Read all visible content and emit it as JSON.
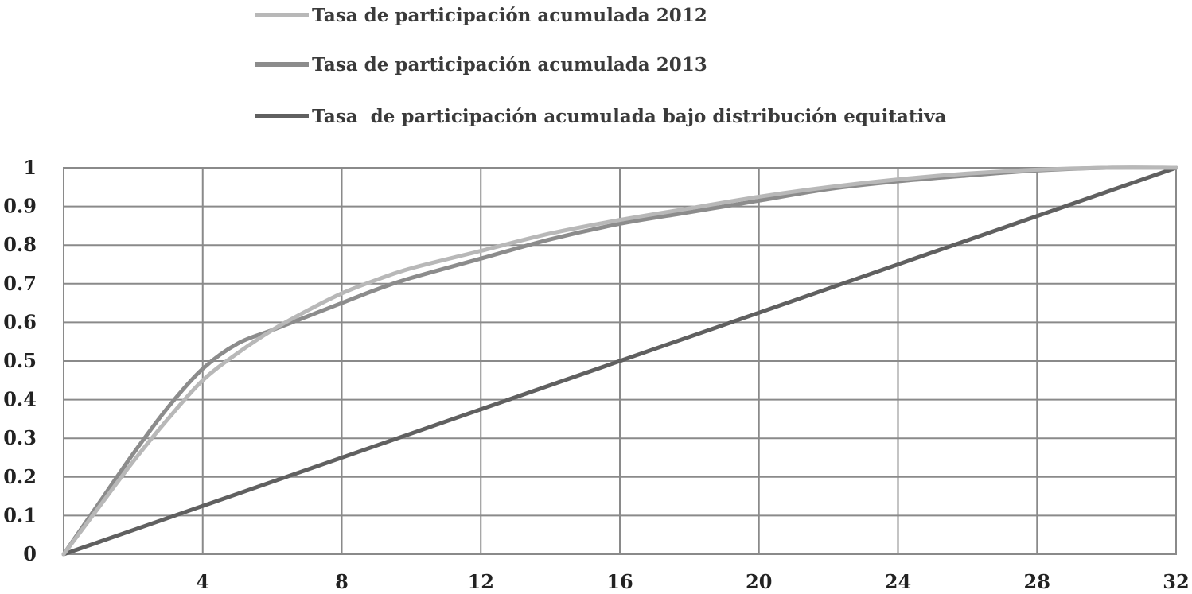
{
  "chart_data": {
    "type": "line",
    "title": "",
    "xlabel": "",
    "ylabel": "",
    "xlim": [
      0,
      32
    ],
    "ylim": [
      0,
      1
    ],
    "x_ticks": [
      4,
      8,
      12,
      16,
      20,
      24,
      28,
      32
    ],
    "y_ticks": [
      0,
      0.1,
      0.2,
      0.3,
      0.4,
      0.5,
      0.6,
      0.7,
      0.8,
      0.9,
      1
    ],
    "y_tick_labels": [
      "0",
      "0.1",
      "0.2",
      "0.3",
      "0.4",
      "0.5",
      "0.6",
      "0.7",
      "0.8",
      "0.9",
      "1"
    ],
    "grid": true,
    "legend_position": "top",
    "series": [
      {
        "name": "Tasa de participación acumulada 2012",
        "color": "#b8b8b8",
        "x": [
          0,
          1,
          2,
          3,
          4,
          5,
          6,
          7,
          8,
          9,
          10,
          12,
          14,
          16,
          18,
          20,
          22,
          24,
          26,
          28,
          30,
          32
        ],
        "values": [
          0,
          0.12,
          0.24,
          0.35,
          0.45,
          0.52,
          0.58,
          0.63,
          0.675,
          0.71,
          0.74,
          0.785,
          0.83,
          0.865,
          0.895,
          0.925,
          0.95,
          0.97,
          0.985,
          0.995,
          1,
          1
        ]
      },
      {
        "name": "Tasa de participación acumulada 2013",
        "color": "#8c8c8c",
        "x": [
          0,
          1,
          2,
          3,
          4,
          5,
          6,
          7,
          8,
          9,
          10,
          12,
          14,
          16,
          18,
          20,
          22,
          24,
          26,
          28,
          30,
          32
        ],
        "values": [
          0,
          0.13,
          0.26,
          0.38,
          0.48,
          0.545,
          0.58,
          0.615,
          0.65,
          0.685,
          0.715,
          0.765,
          0.815,
          0.855,
          0.885,
          0.915,
          0.945,
          0.965,
          0.98,
          0.993,
          1,
          1
        ]
      },
      {
        "name": "Tasa  de participación acumulada bajo distribución equitativa",
        "color": "#606060",
        "x": [
          0,
          32
        ],
        "values": [
          0,
          1
        ]
      }
    ]
  }
}
